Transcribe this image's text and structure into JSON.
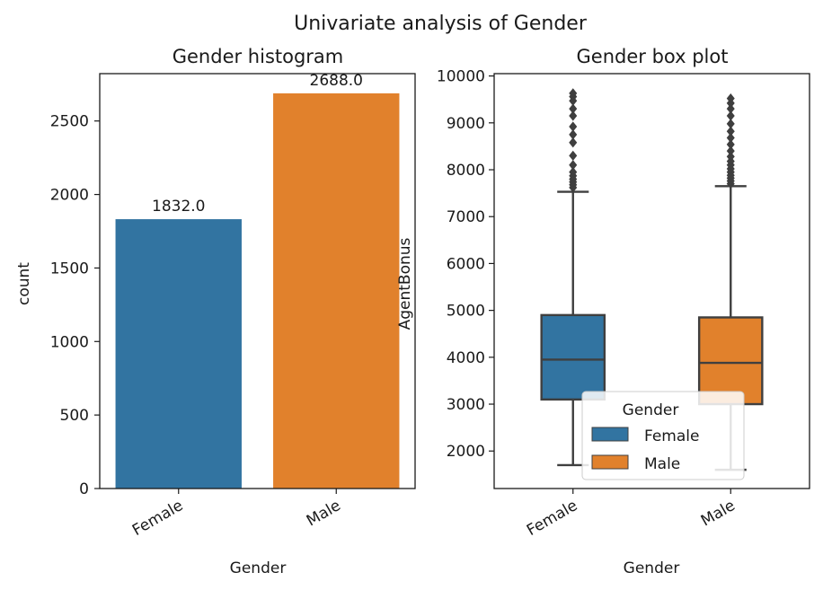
{
  "figure": {
    "suptitle": "Univariate analysis of Gender"
  },
  "colors": {
    "Female": "#3274a1",
    "Male": "#e1812c",
    "box_line": "#3f3f3f"
  },
  "chart_data": [
    {
      "type": "bar",
      "title": "Gender histogram",
      "xlabel": "Gender",
      "ylabel": "count",
      "categories": [
        "Female",
        "Male"
      ],
      "values": [
        1832.0,
        2688.0
      ],
      "data_labels": [
        "1832.0",
        "2688.0"
      ],
      "ylim": [
        0,
        2822
      ],
      "yticks": [
        0,
        500,
        1000,
        1500,
        2000,
        2500
      ],
      "ytick_labels": [
        "0",
        "500",
        "1000",
        "1500",
        "2000",
        "2500"
      ],
      "grid": false
    },
    {
      "type": "box",
      "title": "Gender box plot",
      "xlabel": "Gender",
      "ylabel": "AgentBonus",
      "categories": [
        "Female",
        "Male"
      ],
      "ylim": [
        1200,
        10050
      ],
      "yticks": [
        2000,
        3000,
        4000,
        5000,
        6000,
        7000,
        8000,
        9000,
        10000
      ],
      "ytick_labels": [
        "2000",
        "3000",
        "4000",
        "5000",
        "6000",
        "7000",
        "8000",
        "9000",
        "10000"
      ],
      "boxes": [
        {
          "category": "Female",
          "whisker_low": 1700,
          "q1": 3100,
          "median": 3950,
          "q3": 4900,
          "whisker_high": 7530,
          "outliers": [
            7620,
            7680,
            7740,
            7800,
            7870,
            7950,
            8100,
            8300,
            8580,
            8750,
            8920,
            9150,
            9300,
            9470,
            9560,
            9630
          ]
        },
        {
          "category": "Male",
          "whisker_low": 1600,
          "q1": 3000,
          "median": 3880,
          "q3": 4850,
          "whisker_high": 7650,
          "outliers": [
            7700,
            7760,
            7820,
            7880,
            7950,
            8020,
            8100,
            8180,
            8280,
            8400,
            8540,
            8680,
            8820,
            8980,
            9150,
            9300,
            9420,
            9520
          ]
        }
      ],
      "legend": {
        "title": "Gender",
        "entries": [
          "Female",
          "Male"
        ],
        "placement": "lower-center"
      },
      "grid": false
    }
  ]
}
